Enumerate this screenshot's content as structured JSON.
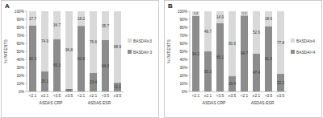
{
  "chart_data": [
    {
      "type": "bar",
      "title": "A",
      "stacked": true,
      "data_labels": true,
      "legend": "right",
      "y_label": "% PATIENTS",
      "categories": [
        "<2.1",
        "≥2.1",
        "<3.5",
        "≥3.5",
        "<2.1",
        "≥2.1",
        "<3.5",
        "≥3.5"
      ],
      "category_groups": [
        "ASDAS CRP",
        "ASDAS ESR"
      ],
      "ylim": [
        0,
        100
      ],
      "yticks": [
        {
          "value": 0,
          "label": "0%"
        },
        {
          "value": 10,
          "label": "10%"
        },
        {
          "value": 20,
          "label": "20%"
        },
        {
          "value": 30,
          "label": "30%"
        },
        {
          "value": 40,
          "label": "40%"
        },
        {
          "value": 50,
          "label": "50%"
        },
        {
          "value": 60,
          "label": "60%"
        },
        {
          "value": 70,
          "label": "70%"
        },
        {
          "value": 80,
          "label": "80%"
        },
        {
          "value": 90,
          "label": "90%"
        },
        {
          "value": 100,
          "label": "100%"
        }
      ],
      "series": [
        {
          "name": "BASDAI<3",
          "color": "#8c8c8c",
          "values": [
            82.3,
            25.1,
            65.3,
            3.2,
            81.8,
            23.4,
            64.3,
            11.1
          ]
        },
        {
          "name": "BASDAI≥3",
          "color": "#d9d9d9",
          "values": [
            17.7,
            74.9,
            34.7,
            96.8,
            18.2,
            76.6,
            35.7,
            88.9
          ]
        }
      ]
    },
    {
      "type": "bar",
      "title": "B",
      "stacked": true,
      "data_labels": true,
      "legend": "right",
      "y_label": "% PATIENTS",
      "categories": [
        "<2.1",
        "≥2.1",
        "<3.5",
        "≥3.5",
        "<2.1",
        "≥2.1",
        "<3.5",
        "≥3.5"
      ],
      "category_groups": [
        "ASDAS CRP",
        "ASDAS ESR"
      ],
      "ylim": [
        0,
        100
      ],
      "yticks": [
        {
          "value": 0,
          "label": "0%"
        },
        {
          "value": 10,
          "label": "10%"
        },
        {
          "value": 20,
          "label": "20%"
        },
        {
          "value": 30,
          "label": "30%"
        },
        {
          "value": 40,
          "label": "40%"
        },
        {
          "value": 50,
          "label": "50%"
        },
        {
          "value": 60,
          "label": "60%"
        },
        {
          "value": 70,
          "label": "70%"
        },
        {
          "value": 80,
          "label": "80%"
        },
        {
          "value": 90,
          "label": "90%"
        },
        {
          "value": 100,
          "label": "100%"
        }
      ],
      "series": [
        {
          "name": "BASDAI<4",
          "color": "#8c8c8c",
          "values": [
            94.2,
            50.3,
            85.1,
            19.4,
            94.7,
            47.4,
            81.4,
            22.2
          ]
        },
        {
          "name": "BASDAI≥4",
          "color": "#d9d9d9",
          "values": [
            5.8,
            49.7,
            14.9,
            80.6,
            5.3,
            52.6,
            18.6,
            77.8
          ]
        }
      ]
    }
  ]
}
